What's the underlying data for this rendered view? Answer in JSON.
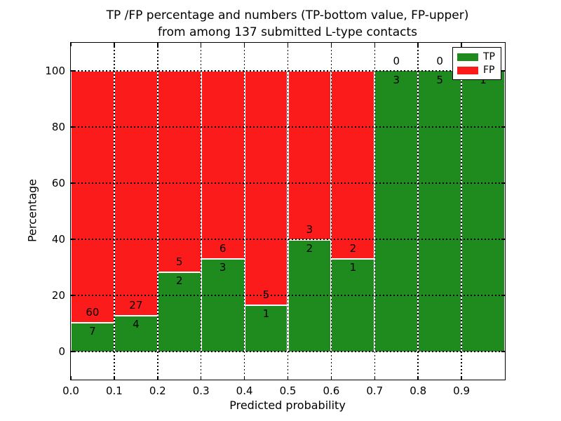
{
  "title": {
    "line1": "TP /FP percentage and numbers (TP-bottom value, FP-upper)",
    "line2": "from among 137 submitted L-type contacts"
  },
  "axes": {
    "xlabel": "Predicted probability",
    "ylabel": "Percentage",
    "x_tick_labels": [
      "0.0",
      "0.1",
      "0.2",
      "0.3",
      "0.4",
      "0.5",
      "0.6",
      "0.7",
      "0.8",
      "0.9"
    ],
    "y_tick_labels": [
      "0",
      "20",
      "40",
      "60",
      "80",
      "100"
    ]
  },
  "legend": {
    "items": [
      {
        "label": "TP",
        "color": "#1f8b1f"
      },
      {
        "label": "FP",
        "color": "#fb1b1b"
      }
    ]
  },
  "colors": {
    "tp": "#1f8b1f",
    "fp": "#fb1b1b",
    "grid": "#000000",
    "bar_edge": "#ffffff"
  },
  "chart_data": {
    "type": "bar",
    "stacked": true,
    "title": "TP /FP percentage and numbers (TP-bottom value, FP-upper) from among 137 submitted L-type contacts",
    "xlabel": "Predicted probability",
    "ylabel": "Percentage",
    "total_submitted_contacts": 137,
    "categories": [
      "0.0-0.1",
      "0.1-0.2",
      "0.2-0.3",
      "0.3-0.4",
      "0.4-0.5",
      "0.5-0.6",
      "0.6-0.7",
      "0.7-0.8",
      "0.8-0.9",
      "0.9-1.0"
    ],
    "bin_starts": [
      0.0,
      0.1,
      0.2,
      0.3,
      0.4,
      0.5,
      0.6,
      0.7,
      0.8,
      0.9
    ],
    "bin_width": 0.1,
    "series": [
      {
        "name": "TP",
        "counts": [
          7,
          4,
          2,
          3,
          1,
          2,
          1,
          3,
          5,
          1
        ],
        "percents": [
          10.45,
          12.9,
          28.57,
          33.33,
          16.67,
          40.0,
          33.33,
          100.0,
          100.0,
          100.0
        ]
      },
      {
        "name": "FP",
        "counts": [
          60,
          27,
          5,
          6,
          5,
          3,
          2,
          0,
          0,
          0
        ],
        "percents": [
          89.55,
          87.1,
          71.43,
          66.67,
          83.33,
          60.0,
          66.67,
          0.0,
          0.0,
          0.0
        ]
      }
    ],
    "xlim": [
      0.0,
      1.0
    ],
    "ylim": [
      -10,
      110
    ],
    "xticks": [
      0.0,
      0.1,
      0.2,
      0.3,
      0.4,
      0.5,
      0.6,
      0.7,
      0.8,
      0.9
    ],
    "yticks": [
      0,
      20,
      40,
      60,
      80,
      100
    ],
    "grid": "dotted",
    "legend_position": "upper right"
  }
}
